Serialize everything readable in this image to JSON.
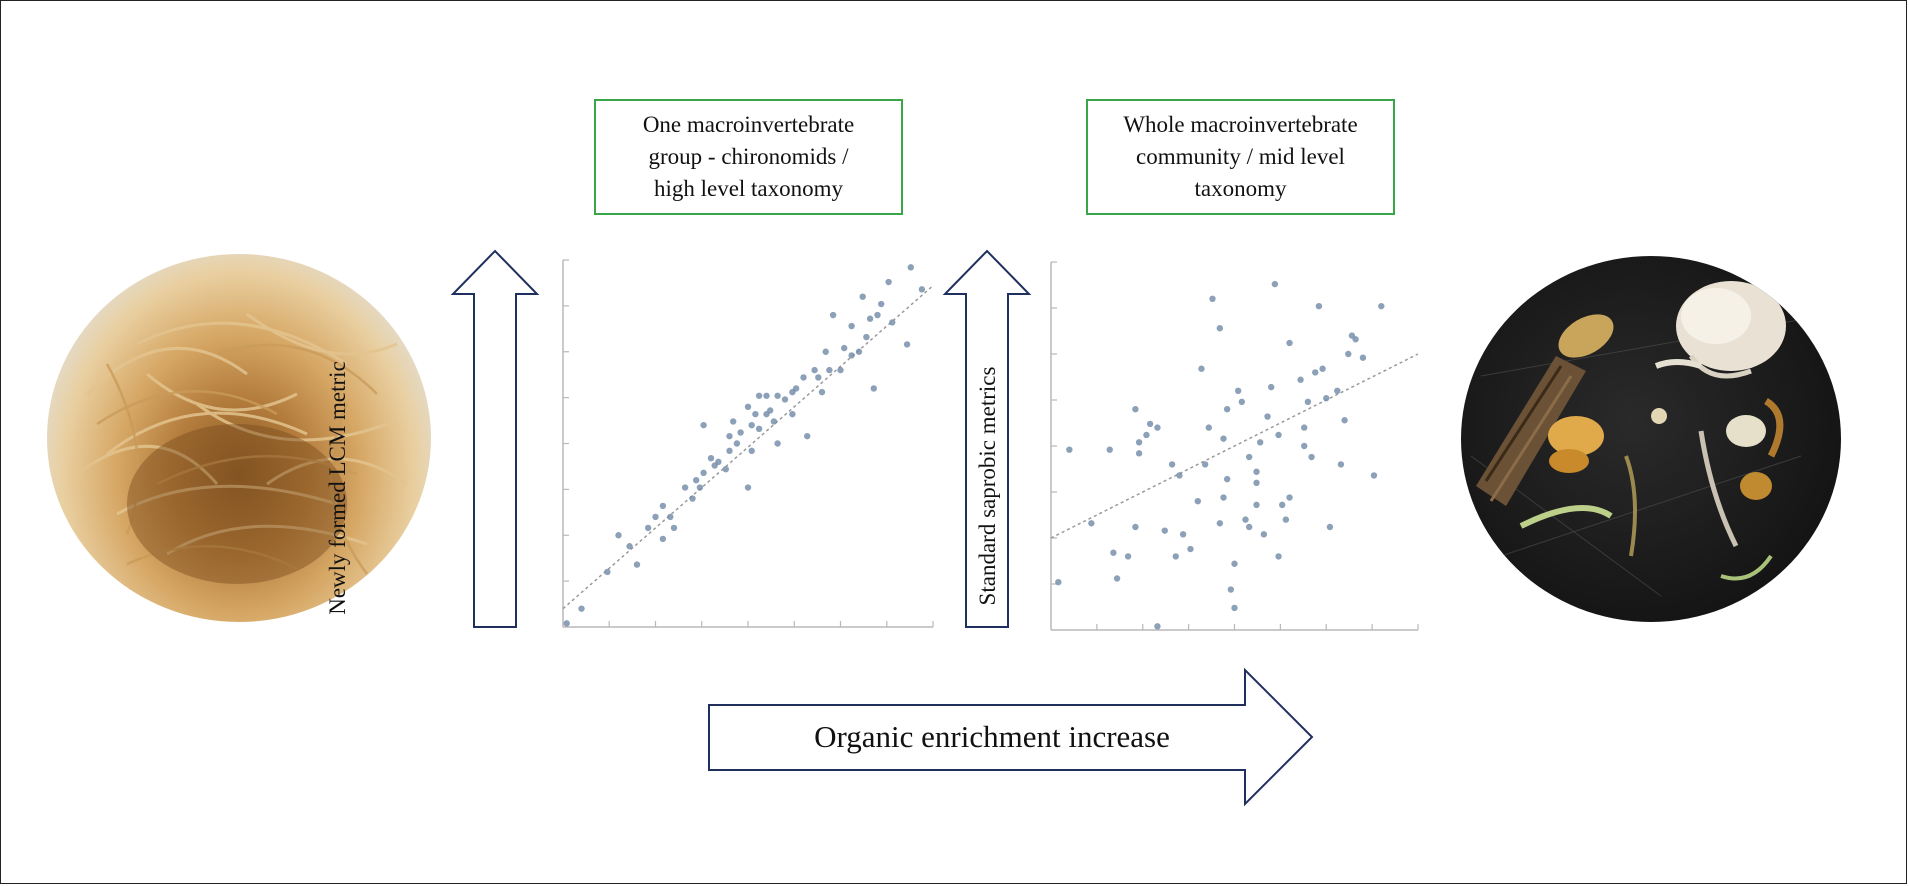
{
  "boxes": {
    "left_label": "One macroinvertebrate\ngroup - chironomids /\nhigh level taxonomy",
    "right_label": "Whole macroinvertebrate\ncommunity / mid level\ntaxonomy"
  },
  "arrows": {
    "vertical_left_label": "Newly formed LCM metric",
    "vertical_right_label": "Standard saprobic metrics",
    "horizontal_label": "Organic enrichment increase"
  },
  "colors": {
    "box_border": "#3aa64a",
    "arrow_stroke": "#1f2f5e",
    "point_fill": "#6f89a6",
    "trend_line": "#9a9a9a"
  },
  "images": {
    "left_photo": "chironomid larvae mass",
    "right_photo": "mixed macroinvertebrate community"
  },
  "chart_data": [
    {
      "type": "scatter",
      "title": "",
      "xlabel": "",
      "ylabel": "Newly formed LCM metric",
      "xlim": [
        0,
        100
      ],
      "ylim": [
        0,
        100
      ],
      "trend": [
        [
          0,
          5
        ],
        [
          100,
          93
        ]
      ],
      "points": [
        [
          1,
          1
        ],
        [
          5,
          5
        ],
        [
          12,
          15
        ],
        [
          15,
          25
        ],
        [
          18,
          22
        ],
        [
          20,
          17
        ],
        [
          23,
          27
        ],
        [
          25,
          30
        ],
        [
          27,
          33
        ],
        [
          27,
          24
        ],
        [
          29,
          30
        ],
        [
          30,
          27
        ],
        [
          33,
          38
        ],
        [
          35,
          35
        ],
        [
          37,
          38
        ],
        [
          38,
          42
        ],
        [
          40,
          46
        ],
        [
          38,
          55
        ],
        [
          36,
          40
        ],
        [
          41,
          44
        ],
        [
          42,
          45
        ],
        [
          44,
          43
        ],
        [
          45,
          48
        ],
        [
          45,
          52
        ],
        [
          46,
          56
        ],
        [
          47,
          50
        ],
        [
          48,
          53
        ],
        [
          50,
          60
        ],
        [
          50,
          38
        ],
        [
          51,
          55
        ],
        [
          51,
          48
        ],
        [
          52,
          58
        ],
        [
          53,
          63
        ],
        [
          53,
          54
        ],
        [
          55,
          58
        ],
        [
          55,
          63
        ],
        [
          56,
          59
        ],
        [
          57,
          56
        ],
        [
          58,
          63
        ],
        [
          58,
          50
        ],
        [
          60,
          62
        ],
        [
          62,
          64
        ],
        [
          63,
          65
        ],
        [
          62,
          58
        ],
        [
          65,
          68
        ],
        [
          66,
          52
        ],
        [
          68,
          70
        ],
        [
          69,
          68
        ],
        [
          70,
          64
        ],
        [
          71,
          75
        ],
        [
          72,
          70
        ],
        [
          73,
          85
        ],
        [
          75,
          70
        ],
        [
          76,
          76
        ],
        [
          78,
          82
        ],
        [
          78,
          74
        ],
        [
          80,
          75
        ],
        [
          81,
          90
        ],
        [
          82,
          79
        ],
        [
          83,
          84
        ],
        [
          84,
          65
        ],
        [
          85,
          85
        ],
        [
          86,
          88
        ],
        [
          88,
          94
        ],
        [
          89,
          83
        ],
        [
          93,
          77
        ],
        [
          94,
          98
        ],
        [
          97,
          92
        ]
      ]
    },
    {
      "type": "scatter",
      "title": "",
      "xlabel": "",
      "ylabel": "Standard saprobic metrics",
      "xlim": [
        0,
        100
      ],
      "ylim": [
        0,
        100
      ],
      "trend": [
        [
          0,
          25
        ],
        [
          100,
          75
        ]
      ],
      "points": [
        [
          2,
          13
        ],
        [
          5,
          49
        ],
        [
          11,
          29
        ],
        [
          16,
          49
        ],
        [
          17,
          21
        ],
        [
          18,
          14
        ],
        [
          21,
          20
        ],
        [
          23,
          60
        ],
        [
          23,
          28
        ],
        [
          24,
          48
        ],
        [
          24,
          51
        ],
        [
          26,
          53
        ],
        [
          27,
          56
        ],
        [
          29,
          55
        ],
        [
          29,
          1
        ],
        [
          31,
          27
        ],
        [
          33,
          45
        ],
        [
          34,
          20
        ],
        [
          35,
          42
        ],
        [
          36,
          26
        ],
        [
          38,
          22
        ],
        [
          40,
          35
        ],
        [
          41,
          71
        ],
        [
          42,
          45
        ],
        [
          43,
          55
        ],
        [
          44,
          90
        ],
        [
          46,
          82
        ],
        [
          46,
          29
        ],
        [
          47,
          52
        ],
        [
          47,
          36
        ],
        [
          48,
          60
        ],
        [
          48,
          41
        ],
        [
          49,
          11
        ],
        [
          50,
          18
        ],
        [
          50,
          6
        ],
        [
          51,
          65
        ],
        [
          52,
          62
        ],
        [
          53,
          30
        ],
        [
          54,
          47
        ],
        [
          54,
          28
        ],
        [
          56,
          40
        ],
        [
          56,
          43
        ],
        [
          56,
          34
        ],
        [
          57,
          51
        ],
        [
          58,
          26
        ],
        [
          59,
          58
        ],
        [
          60,
          66
        ],
        [
          61,
          94
        ],
        [
          62,
          53
        ],
        [
          62,
          20
        ],
        [
          63,
          34
        ],
        [
          64,
          30
        ],
        [
          65,
          78
        ],
        [
          65,
          36
        ],
        [
          68,
          68
        ],
        [
          69,
          55
        ],
        [
          69,
          50
        ],
        [
          70,
          62
        ],
        [
          71,
          47
        ],
        [
          72,
          70
        ],
        [
          73,
          88
        ],
        [
          74,
          71
        ],
        [
          75,
          63
        ],
        [
          76,
          28
        ],
        [
          78,
          65
        ],
        [
          79,
          45
        ],
        [
          80,
          57
        ],
        [
          81,
          75
        ],
        [
          82,
          80
        ],
        [
          83,
          79
        ],
        [
          85,
          74
        ],
        [
          88,
          42
        ],
        [
          90,
          88
        ]
      ]
    }
  ]
}
